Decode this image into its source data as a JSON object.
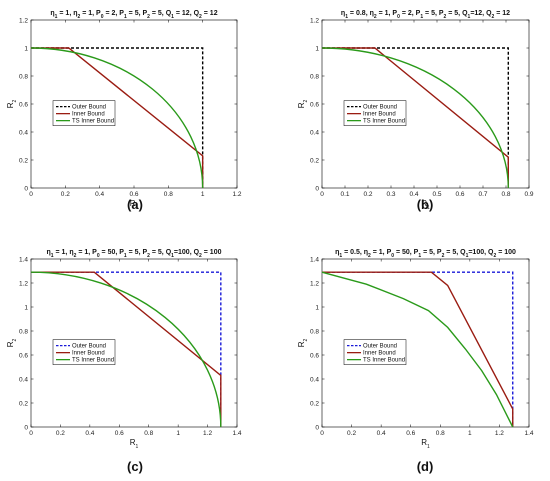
{
  "chart_data": [
    {
      "type": "line",
      "panel_label": "(a)",
      "title": "η1 = 1, η2 = 1, P0 = 2, P1 = 5, P2 = 5, Q1 = 12, Q2 = 12",
      "xlabel": "R1",
      "ylabel": "R2",
      "xlim": [
        0,
        1.2
      ],
      "ylim": [
        0,
        1.2
      ],
      "xticks": [
        "0",
        "0.2",
        "0.4",
        "0.6",
        "0.8",
        "1",
        "1.2"
      ],
      "yticks": [
        "0",
        "0.2",
        "0.4",
        "0.6",
        "0.8",
        "1",
        "1.2"
      ],
      "legend": "center-left",
      "series": [
        {
          "name": "Outer Bound",
          "color": "#000000",
          "dash": true,
          "points": [
            [
              0,
              1.0
            ],
            [
              1.0,
              1.0
            ],
            [
              1.0,
              0
            ]
          ]
        },
        {
          "name": "Inner Bound",
          "color": "#9a1c12",
          "points": [
            [
              0,
              1.0
            ],
            [
              0.22,
              1.0
            ],
            [
              1.0,
              0.23
            ],
            [
              1.0,
              0
            ]
          ]
        },
        {
          "name": "TS Inner Bound",
          "color": "#2a9a1a",
          "curve": "quarter",
          "points": [
            [
              0,
              1.0
            ],
            [
              1.0,
              0
            ]
          ]
        }
      ]
    },
    {
      "type": "line",
      "panel_label": "(b)",
      "title": "η1 = 0.8, η2 = 1, P0 = 2, P1 = 5, P2 = 5, Q1=12, Q2 = 12",
      "xlabel": "R1",
      "ylabel": "R2",
      "xlim": [
        0,
        0.9
      ],
      "ylim": [
        0,
        1.2
      ],
      "xticks": [
        "0",
        "0.1",
        "0.2",
        "0.3",
        "0.4",
        "0.5",
        "0.6",
        "0.7",
        "0.8",
        "0.9"
      ],
      "yticks": [
        "0",
        "0.2",
        "0.4",
        "0.6",
        "0.8",
        "1",
        "1.2"
      ],
      "legend": "center-left",
      "series": [
        {
          "name": "Outer Bound",
          "color": "#000000",
          "dash": true,
          "points": [
            [
              0,
              1.0
            ],
            [
              0.81,
              1.0
            ],
            [
              0.81,
              0
            ]
          ]
        },
        {
          "name": "Inner Bound",
          "color": "#9a1c12",
          "points": [
            [
              0,
              1.0
            ],
            [
              0.23,
              1.0
            ],
            [
              0.81,
              0.22
            ],
            [
              0.81,
              0
            ]
          ]
        },
        {
          "name": "TS Inner Bound",
          "color": "#2a9a1a",
          "curve": "quarter",
          "points": [
            [
              0,
              1.0
            ],
            [
              0.81,
              0
            ]
          ]
        }
      ]
    },
    {
      "type": "line",
      "panel_label": "(c)",
      "title": "η1 = 1, η2 = 1, P0 = 50, P1 = 5, P2 = 5, Q1=100, Q2 = 100",
      "xlabel": "R1",
      "ylabel": "R2",
      "xlim": [
        0,
        1.4
      ],
      "ylim": [
        0,
        1.4
      ],
      "xticks": [
        "0",
        "0.2",
        "0.4",
        "0.6",
        "0.8",
        "1",
        "1.2",
        "1.4"
      ],
      "yticks": [
        "0",
        "0.2",
        "0.4",
        "0.6",
        "0.8",
        "1",
        "1.2",
        "1.4"
      ],
      "legend": "center-left",
      "series": [
        {
          "name": "Outer Bound",
          "color": "#1a1ad8",
          "dash": true,
          "points": [
            [
              0,
              1.29
            ],
            [
              1.29,
              1.29
            ],
            [
              1.29,
              0
            ]
          ]
        },
        {
          "name": "Inner Bound",
          "color": "#9a1c12",
          "points": [
            [
              0,
              1.29
            ],
            [
              0.43,
              1.29
            ],
            [
              1.29,
              0.43
            ],
            [
              1.29,
              0
            ]
          ]
        },
        {
          "name": "TS Inner Bound",
          "color": "#2a9a1a",
          "curve": "quarter",
          "points": [
            [
              0,
              1.29
            ],
            [
              1.29,
              0
            ]
          ]
        }
      ]
    },
    {
      "type": "line",
      "panel_label": "(d)",
      "title": "η1 = 0.5, η2 = 1, P0 = 50, P1 = 5, P2 = 5, Q1=100, Q2 = 100",
      "xlabel": "R1",
      "ylabel": "R2",
      "xlim": [
        0,
        1.4
      ],
      "ylim": [
        0,
        1.4
      ],
      "xticks": [
        "0",
        "0.2",
        "0.4",
        "0.6",
        "0.8",
        "1",
        "1.2",
        "1.4"
      ],
      "yticks": [
        "0",
        "0.2",
        "0.4",
        "0.6",
        "0.8",
        "1",
        "1.2",
        "1.4"
      ],
      "legend": "center-left",
      "series": [
        {
          "name": "Outer Bound",
          "color": "#1a1ad8",
          "dash": true,
          "points": [
            [
              0,
              1.29
            ],
            [
              1.29,
              1.29
            ],
            [
              1.29,
              0
            ]
          ]
        },
        {
          "name": "Inner Bound",
          "color": "#9a1c12",
          "points": [
            [
              0,
              1.29
            ],
            [
              0.74,
              1.29
            ],
            [
              0.85,
              1.18
            ],
            [
              1.29,
              0.15
            ],
            [
              1.29,
              0
            ]
          ]
        },
        {
          "name": "TS Inner Bound",
          "color": "#2a9a1a",
          "points": [
            [
              0,
              1.29
            ],
            [
              0.3,
              1.19
            ],
            [
              0.55,
              1.07
            ],
            [
              0.72,
              0.97
            ],
            [
              0.85,
              0.83
            ],
            [
              0.97,
              0.65
            ],
            [
              1.08,
              0.47
            ],
            [
              1.18,
              0.27
            ],
            [
              1.29,
              0
            ]
          ]
        }
      ]
    }
  ]
}
